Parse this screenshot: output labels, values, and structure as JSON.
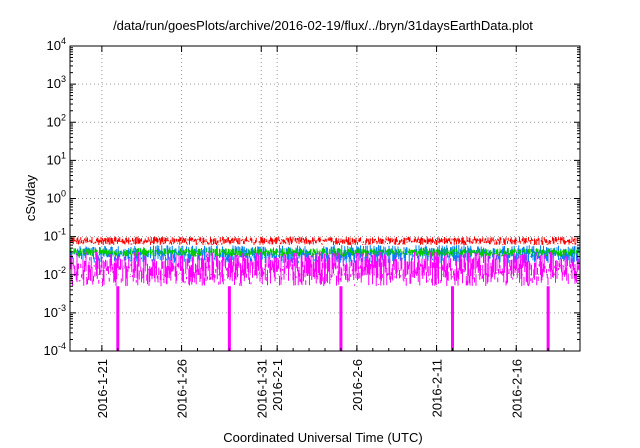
{
  "chart_data": {
    "type": "area",
    "title": "/data/run/goesPlots/archive/2016-02-19/flux/../bryn/31daysEarthData.plot",
    "xlabel": "Coordinated Universal Time (UTC)",
    "ylabel": "cSv/day",
    "y_scale": "log",
    "ylim": [
      0.0001,
      10000
    ],
    "y_ticks": [
      {
        "base": "10",
        "exp": "-4"
      },
      {
        "base": "10",
        "exp": "-3"
      },
      {
        "base": "10",
        "exp": "-2"
      },
      {
        "base": "10",
        "exp": "-1"
      },
      {
        "base": "10",
        "exp": "0"
      },
      {
        "base": "10",
        "exp": "1"
      },
      {
        "base": "10",
        "exp": "2"
      },
      {
        "base": "10",
        "exp": "3"
      },
      {
        "base": "10",
        "exp": "4"
      }
    ],
    "xlim": [
      "2016-01-19",
      "2016-02-20"
    ],
    "x_ticks": [
      "2016-1-21",
      "2016-1-26",
      "2016-1-31",
      "2016-2-1",
      "2016-2-6",
      "2016-2-11",
      "2016-2-16"
    ],
    "grid": true,
    "series": [
      {
        "color": "#ff0000",
        "band": [
          0.06,
          0.1
        ]
      },
      {
        "color": "#00cc00",
        "band": [
          0.03,
          0.05
        ]
      },
      {
        "color": "#0080ff",
        "band": [
          0.02,
          0.06
        ]
      },
      {
        "color": "#ff00ff",
        "band": [
          0.005,
          0.04
        ]
      }
    ],
    "dropouts": [
      {
        "date": "2016-01-22",
        "value": 0.0001
      },
      {
        "date": "2016-01-29",
        "value": 0.0001
      },
      {
        "date": "2016-02-05",
        "value": 0.0001
      },
      {
        "date": "2016-02-12",
        "value": 0.0001
      },
      {
        "date": "2016-02-18",
        "value": 0.0001
      }
    ]
  }
}
